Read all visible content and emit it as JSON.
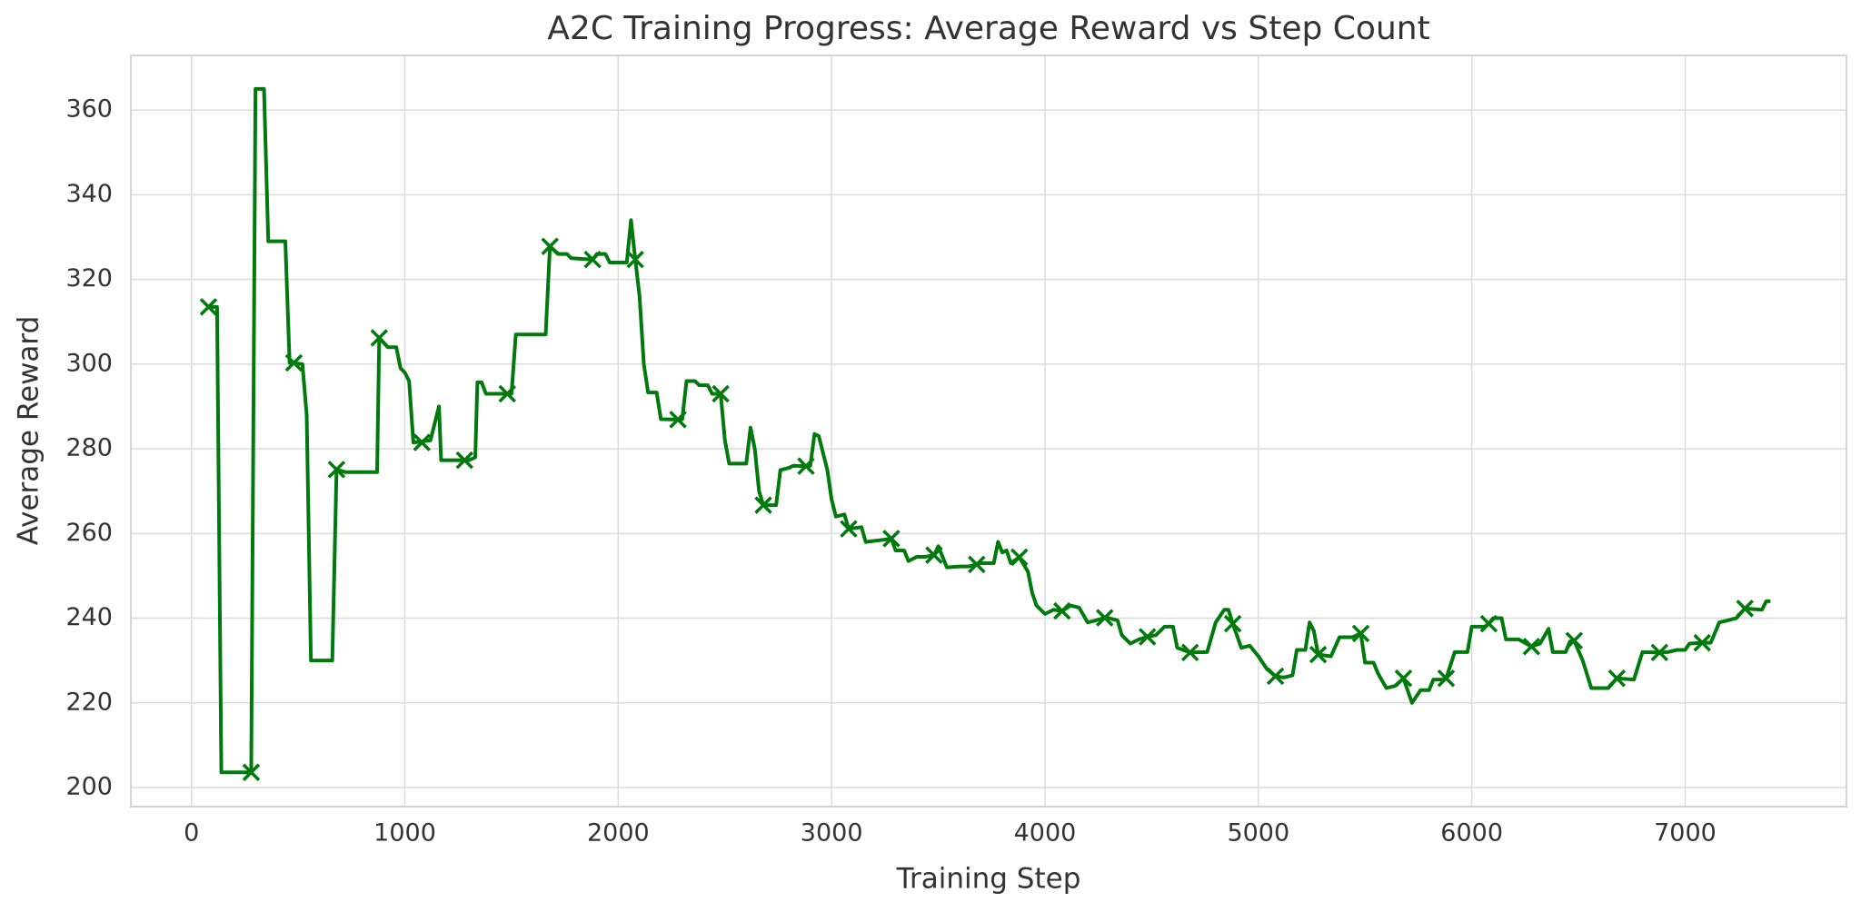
{
  "chart_data": {
    "type": "line",
    "title": "A2C Training Progress: Average Reward vs Step Count",
    "x_label": "Training Step",
    "y_label": "Average Reward",
    "xlim": [
      -284,
      7756
    ],
    "xticks": [
      0,
      1000,
      2000,
      3000,
      4000,
      5000,
      6000,
      7000
    ],
    "ylim": [
      195.5,
      372.9
    ],
    "yticks": [
      200,
      220,
      240,
      260,
      280,
      300,
      320,
      340,
      360
    ],
    "grid": true,
    "series": [
      {
        "color": "#007a0c",
        "marker": "none",
        "x": [
          80,
          120,
          140,
          280,
          300,
          340,
          360,
          440,
          460,
          520,
          540,
          560,
          660,
          680,
          720,
          870,
          880,
          920,
          960,
          980,
          1000,
          1020,
          1040,
          1120,
          1160,
          1170,
          1300,
          1330,
          1340,
          1360,
          1380,
          1480,
          1500,
          1520,
          1660,
          1680,
          1720,
          1760,
          1780,
          1880,
          1900,
          1940,
          1960,
          2040,
          2060,
          2080,
          2100,
          2120,
          2140,
          2180,
          2200,
          2280,
          2300,
          2320,
          2360,
          2380,
          2420,
          2440,
          2480,
          2500,
          2520,
          2600,
          2620,
          2640,
          2660,
          2680,
          2740,
          2760,
          2800,
          2820,
          2880,
          2900,
          2920,
          2940,
          2980,
          3000,
          3020,
          3060,
          3080,
          3140,
          3160,
          3240,
          3280,
          3300,
          3340,
          3360,
          3400,
          3440,
          3480,
          3500,
          3520,
          3540,
          3600,
          3640,
          3680,
          3700,
          3760,
          3780,
          3800,
          3820,
          3840,
          3880,
          3920,
          3940,
          3960,
          4000,
          4040,
          4080,
          4120,
          4160,
          4200,
          4240,
          4280,
          4300,
          4340,
          4360,
          4400,
          4440,
          4480,
          4520,
          4560,
          4600,
          4620,
          4680,
          4760,
          4800,
          4840,
          4860,
          4880,
          4920,
          4960,
          5000,
          5040,
          5080,
          5120,
          5160,
          5180,
          5220,
          5240,
          5260,
          5280,
          5340,
          5380,
          5440,
          5480,
          5500,
          5540,
          5560,
          5600,
          5640,
          5680,
          5720,
          5760,
          5800,
          5820,
          5860,
          5880,
          5920,
          5980,
          6000,
          6060,
          6080,
          6100,
          6140,
          6160,
          6220,
          6280,
          6320,
          6360,
          6380,
          6440,
          6460,
          6480,
          6520,
          6560,
          6640,
          6680,
          6760,
          6800,
          6860,
          6880,
          6920,
          6960,
          7000,
          7020,
          7080,
          7120,
          7160,
          7200,
          7240,
          7280,
          7360,
          7380,
          7400
        ],
        "values": [
          313.5,
          313.5,
          203.6,
          203.6,
          365,
          365,
          329,
          329,
          300.3,
          300,
          288,
          230,
          230,
          275.1,
          274.5,
          274.5,
          306.2,
          304,
          304,
          299,
          298,
          296,
          281.5,
          282,
          290,
          277.3,
          277.3,
          278,
          295.7,
          295.7,
          293,
          293,
          293,
          307,
          307,
          327.8,
          326,
          326,
          325,
          324.7,
          326,
          326,
          324,
          324,
          334,
          324.7,
          316,
          300,
          293.3,
          293.3,
          287,
          286.9,
          287,
          296,
          296,
          295,
          295,
          293,
          293,
          282,
          276.5,
          276.5,
          285,
          280,
          270,
          266.7,
          266.7,
          275,
          275.5,
          276,
          275.9,
          276,
          283.5,
          283,
          275,
          268,
          264,
          264.5,
          261.1,
          261.5,
          258,
          258.5,
          258.8,
          256,
          256,
          253.5,
          254.5,
          254.5,
          254.9,
          257,
          254.5,
          252,
          252.2,
          252.2,
          252.7,
          253,
          253,
          258,
          255.5,
          256,
          253,
          254.4,
          251,
          246,
          243,
          241,
          242,
          241.7,
          243,
          242.5,
          239,
          239.5,
          240.1,
          240,
          239.5,
          236,
          234,
          235,
          235.6,
          236,
          238,
          238,
          233,
          231.9,
          232,
          239,
          242,
          242,
          238.7,
          233,
          233.5,
          231,
          228,
          226.3,
          226,
          226.5,
          232.5,
          232.5,
          239,
          237,
          231.4,
          231,
          235.5,
          235.5,
          236.4,
          229.5,
          229.5,
          227,
          223.5,
          224,
          225.8,
          220,
          223,
          223,
          225.5,
          225.5,
          225.8,
          232,
          232,
          238,
          238,
          238.7,
          240,
          240,
          235,
          235,
          233.3,
          234,
          237.5,
          232,
          232,
          234.5,
          234.7,
          230,
          223.5,
          223.5,
          225.8,
          225.5,
          232,
          231.9,
          231.9,
          232,
          232.5,
          232.5,
          234,
          234.2,
          234.2,
          239,
          239.5,
          240,
          242.3,
          242,
          244,
          244
        ]
      },
      {
        "color": "#007a0c",
        "marker": "x",
        "linestyle": "none",
        "x": [
          80,
          280,
          480,
          680,
          880,
          1080,
          1280,
          1480,
          1680,
          1880,
          2080,
          2280,
          2480,
          2680,
          2880,
          3080,
          3280,
          3480,
          3680,
          3880,
          4080,
          4280,
          4480,
          4680,
          4880,
          5080,
          5280,
          5480,
          5680,
          5880,
          6080,
          6280,
          6480,
          6680,
          6880,
          7080,
          7280
        ],
        "values": [
          313.5,
          203.6,
          300.3,
          275.1,
          306.2,
          281.5,
          277.3,
          293,
          327.8,
          324.7,
          324.7,
          286.9,
          293,
          266.7,
          275.9,
          261.1,
          258.8,
          254.9,
          252.7,
          254.4,
          241.7,
          240.1,
          235.6,
          231.9,
          238.7,
          226.3,
          231.4,
          236.4,
          225.8,
          225.8,
          238.7,
          233.3,
          234.7,
          225.8,
          231.9,
          234.2,
          242.3
        ]
      }
    ]
  }
}
